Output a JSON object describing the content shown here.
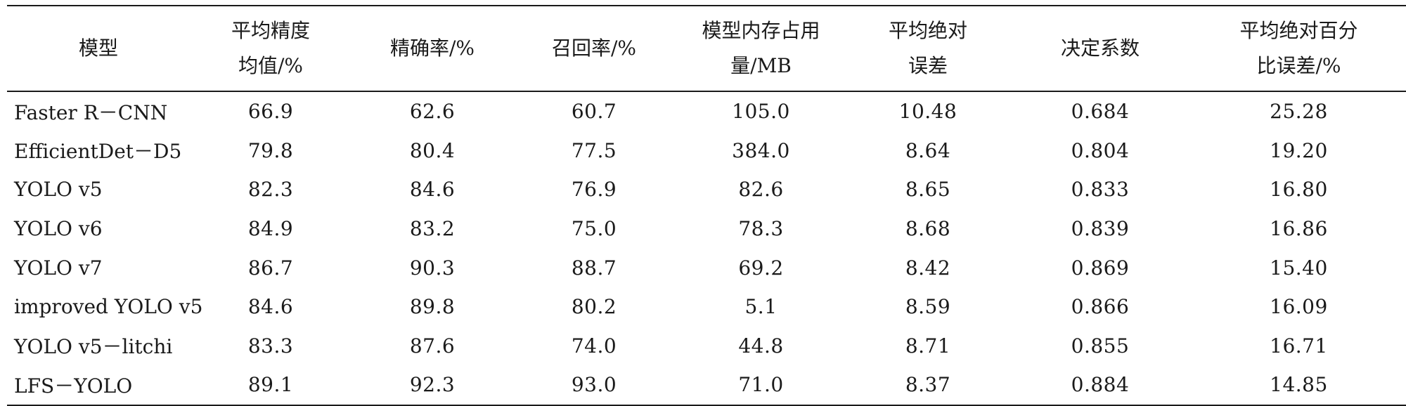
{
  "table": {
    "headers": [
      {
        "line1": "模型",
        "line2": ""
      },
      {
        "line1": "平均精度",
        "line2": "均值/%"
      },
      {
        "line1": "精确率/%",
        "line2": ""
      },
      {
        "line1": "召回率/%",
        "line2": ""
      },
      {
        "line1": "模型内存占用",
        "line2": "量/MB"
      },
      {
        "line1": "平均绝对",
        "line2": "误差"
      },
      {
        "line1": "决定系数",
        "line2": ""
      },
      {
        "line1": "平均绝对百分",
        "line2": "比误差/%"
      }
    ],
    "rows": [
      [
        "Faster R－CNN",
        "66.9",
        "62.6",
        "60.7",
        "105.0",
        "10.48",
        "0.684",
        "25.28"
      ],
      [
        "EfficientDet－D5",
        "79.8",
        "80.4",
        "77.5",
        "384.0",
        "8.64",
        "0.804",
        "19.20"
      ],
      [
        "YOLO v5",
        "82.3",
        "84.6",
        "76.9",
        "82.6",
        "8.65",
        "0.833",
        "16.80"
      ],
      [
        "YOLO v6",
        "84.9",
        "83.2",
        "75.0",
        "78.3",
        "8.68",
        "0.839",
        "16.86"
      ],
      [
        "YOLO v7",
        "86.7",
        "90.3",
        "88.7",
        "69.2",
        "8.42",
        "0.869",
        "15.40"
      ],
      [
        "improved YOLO v5",
        "84.6",
        "89.8",
        "80.2",
        "5.1",
        "8.59",
        "0.866",
        "16.09"
      ],
      [
        "YOLO v5－litchi",
        "83.3",
        "87.6",
        "74.0",
        "44.8",
        "8.71",
        "0.855",
        "16.71"
      ],
      [
        "LFS－YOLO",
        "89.1",
        "92.3",
        "93.0",
        "71.0",
        "8.37",
        "0.884",
        "14.85"
      ]
    ]
  }
}
